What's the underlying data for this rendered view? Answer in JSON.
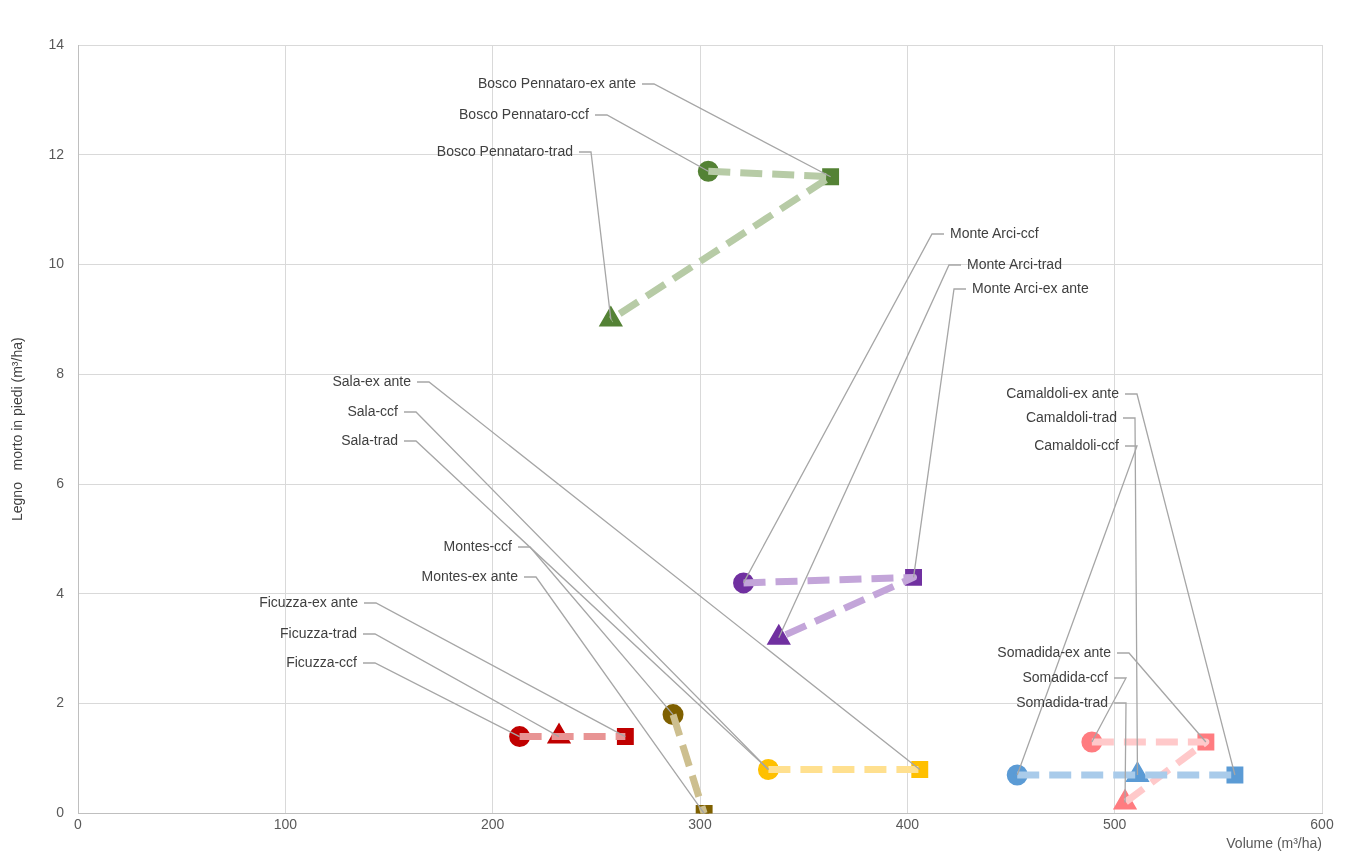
{
  "chart_data": {
    "type": "line",
    "xlabel": "Volume (m³/ha)",
    "ylabel": "Legno   morto in piedi (m³/ha)",
    "xlim": [
      0,
      600
    ],
    "xticks": [
      0,
      100,
      200,
      300,
      400,
      500,
      600
    ],
    "ylim": [
      0,
      14
    ],
    "yticks": [
      0,
      2,
      4,
      6,
      8,
      10,
      12,
      14
    ],
    "grid": true,
    "legend": false,
    "line_style": "dashed",
    "series": [
      {
        "color": "#b7cba6",
        "marker": "none",
        "x": [
          304,
          363,
          257
        ],
        "values": [
          11.7,
          11.6,
          9.0
        ]
      },
      {
        "color": "#c3a5d9",
        "marker": "none",
        "x": [
          321,
          403,
          338
        ],
        "values": [
          4.2,
          4.3,
          3.2
        ]
      },
      {
        "color": "#ffe08f",
        "marker": "none",
        "x": [
          333,
          406
        ],
        "values": [
          0.8,
          0.8
        ]
      },
      {
        "color": "#cdbf8f",
        "marker": "none",
        "x": [
          287,
          302
        ],
        "values": [
          1.8,
          0
        ]
      },
      {
        "color": "#e89494",
        "marker": "none",
        "x": [
          213,
          264
        ],
        "values": [
          1.4,
          1.4
        ]
      },
      {
        "color": "#a9cbea",
        "marker": "none",
        "x": [
          453,
          558
        ],
        "values": [
          0.7,
          0.7
        ]
      },
      {
        "color": "#ffc9ca",
        "marker": "none",
        "x": [
          489,
          544,
          505
        ],
        "values": [
          1.3,
          1.3,
          0.2
        ]
      },
      {
        "type": "scatter",
        "marker": "circle",
        "colors": [
          "#548235",
          "#7030a0",
          "#ffc000",
          "#7f6000",
          "#c00000",
          "#5b9bd5",
          "#ff7c80"
        ],
        "x": [
          304,
          321,
          333,
          287,
          213,
          453,
          489
        ],
        "values": [
          11.7,
          4.2,
          0.8,
          1.8,
          1.4,
          0.7,
          1.3
        ]
      },
      {
        "type": "scatter",
        "marker": "square",
        "colors": [
          "#548235",
          "#7030a0",
          "#ffc000",
          "#7f6000",
          "#c00000",
          "#5b9bd5",
          "#ff7c80"
        ],
        "x": [
          363,
          403,
          406,
          302,
          264,
          558,
          544
        ],
        "values": [
          11.6,
          4.3,
          0.8,
          0,
          1.4,
          0.7,
          1.3
        ]
      },
      {
        "type": "scatter",
        "marker": "triangle",
        "colors": [
          "#548235",
          "#7030a0",
          "#c00000",
          "#5b9bd5",
          "#ff7c80"
        ],
        "x": [
          257,
          338,
          232,
          511,
          505
        ],
        "values": [
          9.0,
          3.2,
          1.4,
          0.7,
          0.2
        ]
      }
    ],
    "annotations": [
      {
        "text": "Bosco Pennataro-ex ante",
        "x": 363,
        "y": 11.6
      },
      {
        "text": "Bosco Pennataro-ccf",
        "x": 304,
        "y": 11.7
      },
      {
        "text": "Bosco Pennataro-trad",
        "x": 257,
        "y": 9.0
      },
      {
        "text": "Monte Arci-ccf",
        "x": 321,
        "y": 4.2
      },
      {
        "text": "Monte Arci-trad",
        "x": 338,
        "y": 3.2
      },
      {
        "text": "Monte Arci-ex ante",
        "x": 403,
        "y": 4.3
      },
      {
        "text": "Sala-ex ante",
        "x": 406,
        "y": 0.8
      },
      {
        "text": "Sala-ccf",
        "x": 333,
        "y": 0.8
      },
      {
        "text": "Sala-trad",
        "x": 333,
        "y": 0.8
      },
      {
        "text": "Montes-ccf",
        "x": 287,
        "y": 1.8
      },
      {
        "text": "Montes-ex ante",
        "x": 302,
        "y": 0
      },
      {
        "text": "Ficuzza-ex ante",
        "x": 264,
        "y": 1.4
      },
      {
        "text": "Ficuzza-trad",
        "x": 232,
        "y": 1.4
      },
      {
        "text": "Ficuzza-ccf",
        "x": 213,
        "y": 1.4
      },
      {
        "text": "Camaldoli-ex ante",
        "x": 558,
        "y": 0.7
      },
      {
        "text": "Camaldoli-trad",
        "x": 511,
        "y": 0.7
      },
      {
        "text": "Camaldoli-ccf",
        "x": 453,
        "y": 0.7
      },
      {
        "text": "Somadida-ex ante",
        "x": 544,
        "y": 1.3
      },
      {
        "text": "Somadida-ccf",
        "x": 489,
        "y": 1.3
      },
      {
        "text": "Somadida-trad",
        "x": 505,
        "y": 0.2
      }
    ]
  }
}
